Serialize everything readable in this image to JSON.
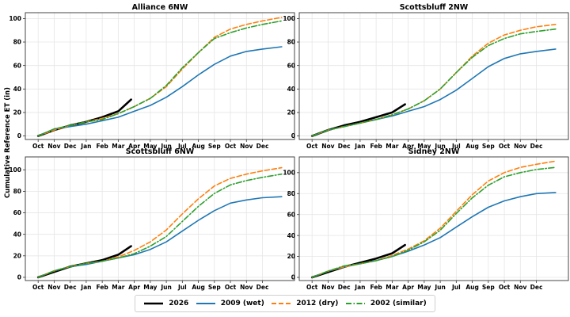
{
  "chart_data": {
    "type": "line",
    "ylabel": "Cumulative Reference ET (in)",
    "x_ticks": [
      "Oct",
      "Nov",
      "Dec",
      "Jan",
      "Feb",
      "Mar",
      "Apr",
      "May",
      "Jun",
      "Jul",
      "Aug",
      "Sep",
      "Oct",
      "Nov",
      "Dec"
    ],
    "legend": {
      "placement": "bottom-center"
    },
    "series_styles": {
      "2026": {
        "color": "#000000",
        "dash": "solid"
      },
      "2009 (wet)": {
        "color": "#1f77b4",
        "dash": "solid"
      },
      "2012 (dry)": {
        "color": "#ff7f0e",
        "dash": "dashed"
      },
      "2002 (similar)": {
        "color": "#2ca02c",
        "dash": "dashdot"
      }
    },
    "panels": [
      {
        "title": "Alliance 6NW",
        "ylim": [
          -3,
          105
        ],
        "yticks": [
          0,
          20,
          40,
          60,
          80,
          100
        ],
        "grid": true,
        "series": [
          {
            "name": "2026",
            "x": [
              0,
              1,
              2,
              3,
              4,
              5,
              5.8
            ],
            "y": [
              0,
              5,
              9,
              12,
              16,
              21,
              31
            ]
          },
          {
            "name": "2009 (wet)",
            "x": [
              0,
              1,
              2,
              3,
              4,
              5,
              6,
              7,
              8,
              9,
              10,
              11,
              12,
              13,
              14,
              15.2
            ],
            "y": [
              0,
              6,
              8,
              10,
              13,
              16,
              21,
              26,
              33,
              42,
              52,
              61,
              68,
              72,
              74,
              76
            ]
          },
          {
            "name": "2012 (dry)",
            "x": [
              0,
              1,
              2,
              3,
              4,
              5,
              6,
              7,
              8,
              9,
              10,
              11,
              12,
              13,
              14,
              15.2
            ],
            "y": [
              0,
              5,
              9,
              12,
              15,
              19,
              25,
              32,
              42,
              57,
              71,
              84,
              91,
              95,
              98,
              101
            ]
          },
          {
            "name": "2002 (similar)",
            "x": [
              0,
              1,
              2,
              3,
              4,
              5,
              6,
              7,
              8,
              9,
              10,
              11,
              12,
              13,
              14,
              15.2
            ],
            "y": [
              0,
              6,
              9,
              12,
              14,
              19,
              25,
              32,
              43,
              58,
              71,
              83,
              88,
              92,
              95,
              98
            ]
          }
        ]
      },
      {
        "title": "Scottsbluff 2NW",
        "ylim": [
          -3,
          105
        ],
        "yticks": [
          0,
          20,
          40,
          60,
          80,
          100
        ],
        "grid": true,
        "series": [
          {
            "name": "2026",
            "x": [
              0,
              1,
              2,
              3,
              4,
              5,
              5.8
            ],
            "y": [
              0,
              5,
              9,
              12,
              16,
              20,
              27
            ]
          },
          {
            "name": "2009 (wet)",
            "x": [
              0,
              1,
              2,
              3,
              4,
              5,
              6,
              7,
              8,
              9,
              10,
              11,
              12,
              13,
              14,
              15.2
            ],
            "y": [
              0,
              5,
              8,
              11,
              14,
              17,
              21,
              25,
              31,
              39,
              49,
              59,
              66,
              70,
              72,
              74
            ]
          },
          {
            "name": "2012 (dry)",
            "x": [
              0,
              1,
              2,
              3,
              4,
              5,
              6,
              7,
              8,
              9,
              10,
              11,
              12,
              13,
              14,
              15.2
            ],
            "y": [
              0,
              5,
              8,
              11,
              14,
              18,
              23,
              30,
              40,
              54,
              68,
              79,
              86,
              90,
              93,
              95
            ]
          },
          {
            "name": "2002 (similar)",
            "x": [
              0,
              1,
              2,
              3,
              4,
              5,
              6,
              7,
              8,
              9,
              10,
              11,
              12,
              13,
              14,
              15.2
            ],
            "y": [
              0,
              5,
              8,
              11,
              14,
              18,
              23,
              30,
              40,
              54,
              67,
              77,
              83,
              87,
              89,
              91
            ]
          }
        ]
      },
      {
        "title": "Scottsbluff 6NW",
        "ylim": [
          -3,
          112
        ],
        "yticks": [
          0,
          20,
          40,
          60,
          80,
          100
        ],
        "grid": true,
        "series": [
          {
            "name": "2026",
            "x": [
              0,
              1,
              2,
              3,
              4,
              5,
              5.8
            ],
            "y": [
              0,
              5,
              10,
              13,
              16,
              21,
              29
            ]
          },
          {
            "name": "2009 (wet)",
            "x": [
              0,
              1,
              2,
              3,
              4,
              5,
              6,
              7,
              8,
              9,
              10,
              11,
              12,
              13,
              14,
              15.2
            ],
            "y": [
              0,
              6,
              10,
              12,
              15,
              18,
              21,
              26,
              33,
              43,
              53,
              62,
              69,
              72,
              74,
              75
            ]
          },
          {
            "name": "2012 (dry)",
            "x": [
              0,
              1,
              2,
              3,
              4,
              5,
              6,
              7,
              8,
              9,
              10,
              11,
              12,
              13,
              14,
              15.2
            ],
            "y": [
              0,
              6,
              10,
              13,
              15,
              19,
              25,
              33,
              44,
              59,
              73,
              85,
              92,
              96,
              99,
              102
            ]
          },
          {
            "name": "2002 (similar)",
            "x": [
              0,
              1,
              2,
              3,
              4,
              5,
              6,
              7,
              8,
              9,
              10,
              11,
              12,
              13,
              14,
              15.2
            ],
            "y": [
              0,
              6,
              10,
              13,
              15,
              18,
              22,
              29,
              38,
              52,
              66,
              78,
              86,
              90,
              93,
              96
            ]
          }
        ]
      },
      {
        "title": "Sidney 2NW",
        "ylim": [
          -3,
          115
        ],
        "yticks": [
          0,
          20,
          40,
          60,
          80,
          100
        ],
        "grid": true,
        "series": [
          {
            "name": "2026",
            "x": [
              0,
              1,
              2,
              3,
              4,
              5,
              5.8
            ],
            "y": [
              0,
              5,
              10,
              14,
              18,
              23,
              31
            ]
          },
          {
            "name": "2009 (wet)",
            "x": [
              0,
              1,
              2,
              3,
              4,
              5,
              6,
              7,
              8,
              9,
              10,
              11,
              12,
              13,
              14,
              15.2
            ],
            "y": [
              0,
              6,
              10,
              13,
              16,
              20,
              25,
              31,
              38,
              48,
              58,
              67,
              73,
              77,
              80,
              81
            ]
          },
          {
            "name": "2012 (dry)",
            "x": [
              0,
              1,
              2,
              3,
              4,
              5,
              6,
              7,
              8,
              9,
              10,
              11,
              12,
              13,
              14,
              15.2
            ],
            "y": [
              0,
              6,
              10,
              13,
              16,
              21,
              27,
              35,
              47,
              63,
              79,
              92,
              100,
              105,
              108,
              111
            ]
          },
          {
            "name": "2002 (similar)",
            "x": [
              0,
              1,
              2,
              3,
              4,
              5,
              6,
              7,
              8,
              9,
              10,
              11,
              12,
              13,
              14,
              15.2
            ],
            "y": [
              0,
              6,
              11,
              13,
              16,
              20,
              26,
              34,
              45,
              61,
              76,
              88,
              96,
              100,
              103,
              105
            ]
          }
        ]
      }
    ]
  }
}
